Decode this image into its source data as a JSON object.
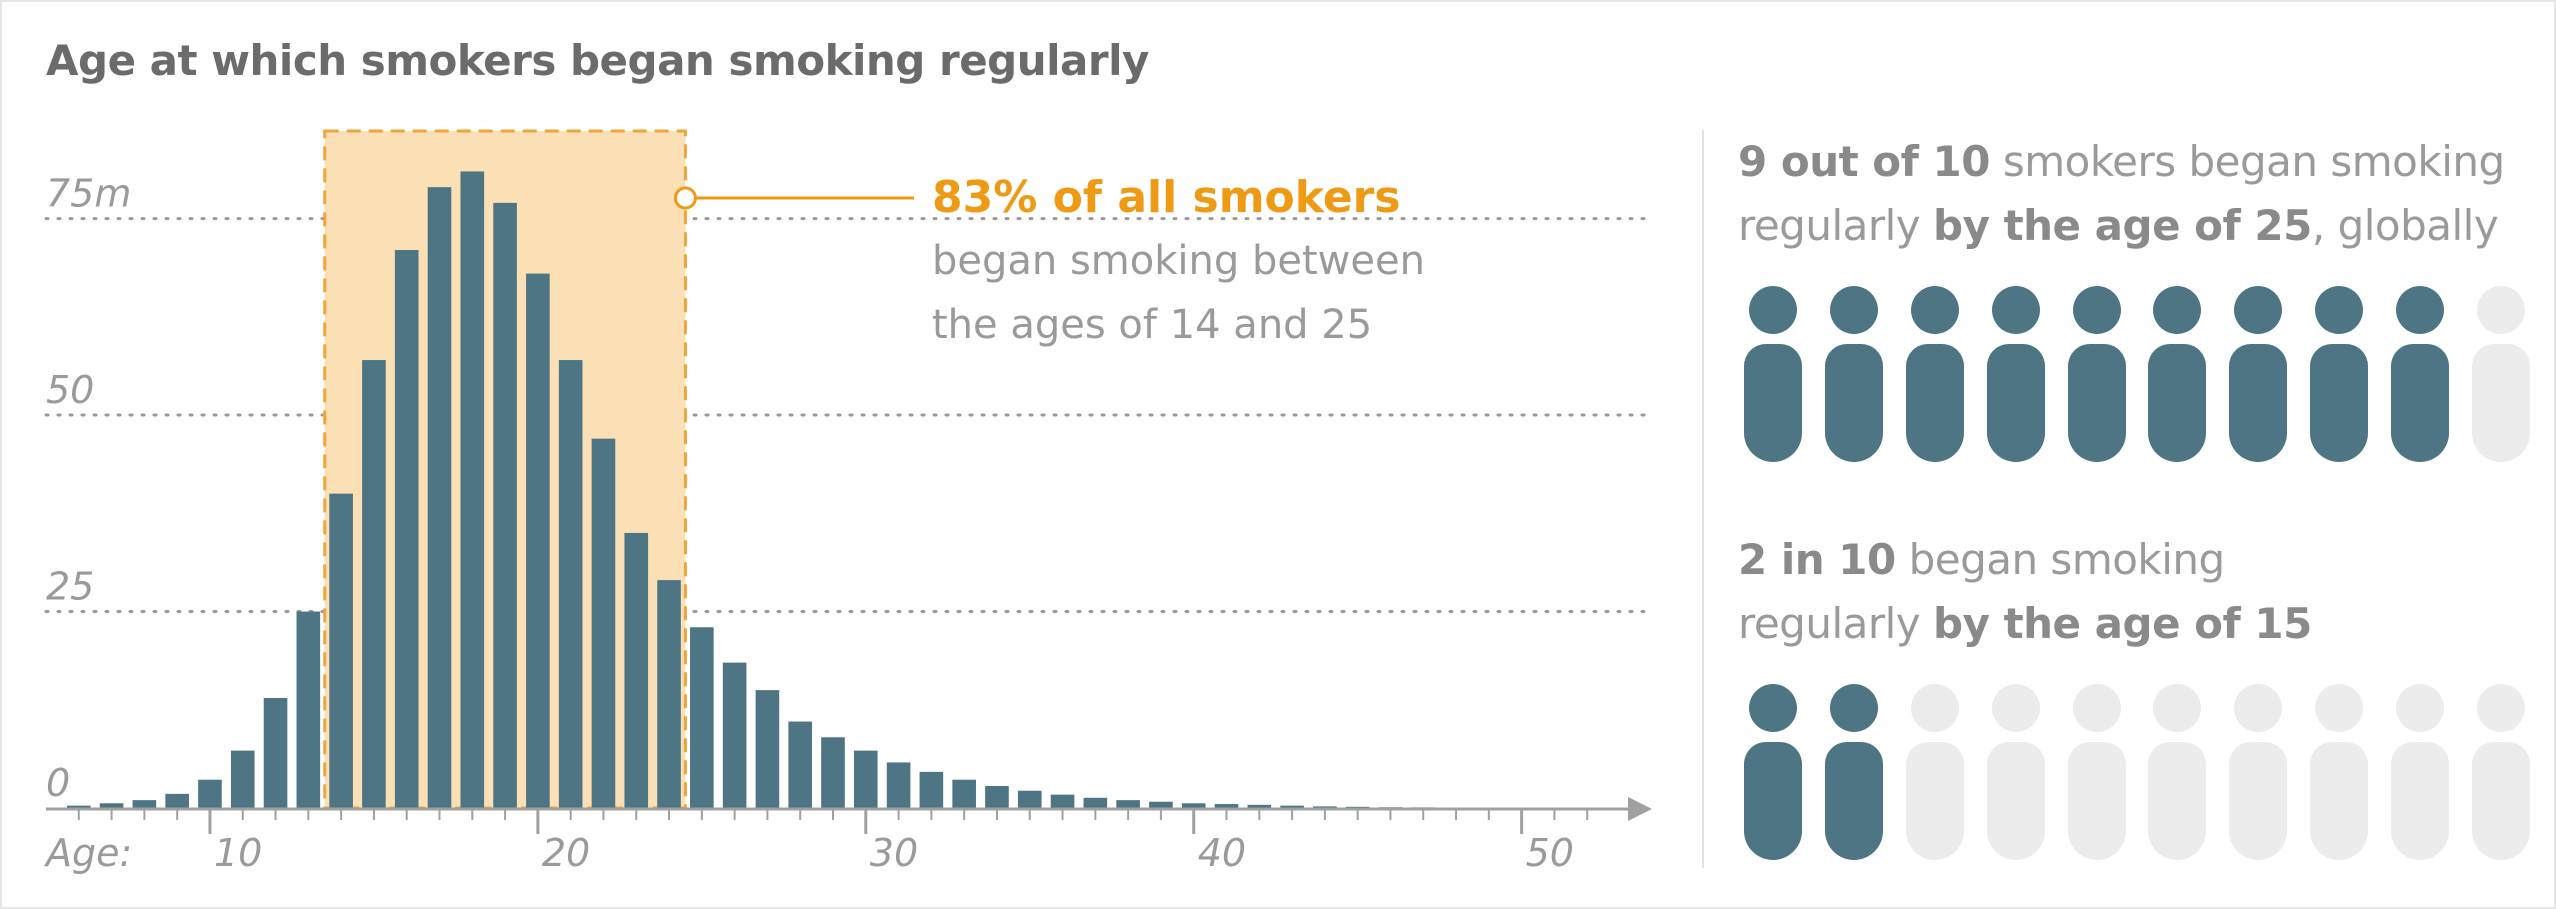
{
  "title": "Age at which smokers began smoking regularly",
  "colors": {
    "bar": "#4d7584",
    "highlight_fill": "#fbdfb5",
    "highlight_border": "#f0a53a",
    "accent": "#ef9a14",
    "muted_text": "#9a9a9a",
    "grid": "#9a9a9a",
    "icon_filled": "#4d7584",
    "icon_empty": "#ececec"
  },
  "chart_data": {
    "type": "bar",
    "xlabel": "Age:",
    "ylabel": "",
    "x": [
      6,
      7,
      8,
      9,
      10,
      11,
      12,
      13,
      14,
      15,
      16,
      17,
      18,
      19,
      20,
      21,
      22,
      23,
      24,
      25,
      26,
      27,
      28,
      29,
      30,
      31,
      32,
      33,
      34,
      35,
      36,
      37,
      38,
      39,
      40,
      41,
      42,
      43,
      44,
      45,
      46,
      47,
      48,
      49,
      50
    ],
    "values": [
      0.3,
      0.6,
      1,
      1.8,
      3.6,
      7.3,
      14,
      25,
      40,
      57,
      71,
      79,
      81,
      77,
      68,
      57,
      47,
      35,
      29,
      23,
      18.5,
      15,
      11,
      9,
      7.3,
      5.8,
      4.6,
      3.6,
      2.8,
      2.2,
      1.7,
      1.3,
      1,
      0.8,
      0.6,
      0.5,
      0.4,
      0.3,
      0.2,
      0.15,
      0.1,
      0.08,
      0.06,
      0.04,
      0.02
    ],
    "xlim": [
      5,
      53
    ],
    "ylim": [
      0,
      85
    ],
    "x_ticks": [
      10,
      20,
      30,
      40,
      50
    ],
    "y_ticks": [
      0,
      25,
      50,
      75
    ],
    "y_tick_labels": [
      "0",
      "25",
      "50",
      "75m"
    ],
    "grid": "horizontal dotted",
    "highlight_range": [
      14,
      25
    ],
    "annotation": {
      "headline": "83% of all smokers",
      "line1": "began smoking between",
      "line2": "the ages of 14 and 25"
    }
  },
  "stats": [
    {
      "line1_bold": "9 out of 10",
      "line1_rest": " smokers began smoking",
      "line2_pre": "regularly ",
      "line2_bold": "by the age of 25",
      "line2_post": ", globally",
      "filled": 9,
      "total": 10
    },
    {
      "line1_bold": "2 in 10",
      "line1_rest": " began smoking",
      "line2_pre": "regularly ",
      "line2_bold": "by the age of 15",
      "line2_post": "",
      "filled": 2,
      "total": 10
    }
  ]
}
